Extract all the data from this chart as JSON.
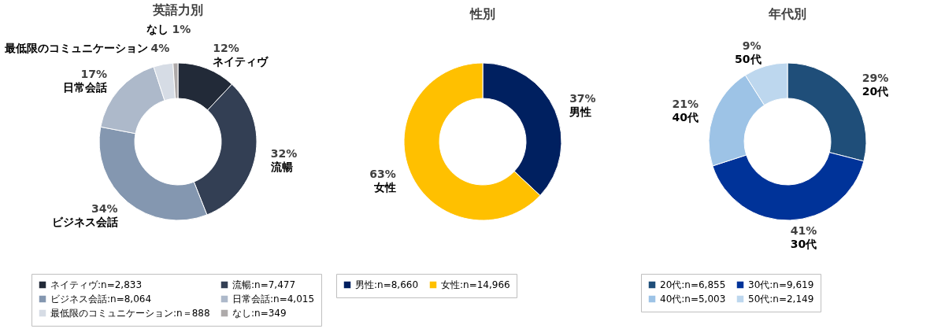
{
  "chart_data": [
    {
      "type": "donut",
      "title": "英語力別",
      "categories": [
        "ネイティヴ:n=2,833",
        "流暢:n=7,477",
        "ビジネス会話:n=8,064",
        "日常会話:n=4,015",
        "最低限のコミュニケーション:n＝888",
        "なし:n=349"
      ],
      "values": [
        12,
        32,
        34,
        17,
        4,
        1
      ],
      "colors": [
        "#222a38",
        "#333f54",
        "#8497b0",
        "#adb9ca",
        "#d6dce5",
        "#aeaaaa"
      ],
      "value_labels": [
        "12%",
        "32%",
        "34%",
        "17%",
        "4%",
        "1%"
      ],
      "annotations": [
        "ネイティヴ",
        "流暢",
        "ビジネス会話",
        "日常会話",
        "最低限のコミュニケーション",
        "なし"
      ],
      "legend": "bottom"
    },
    {
      "type": "donut",
      "title": "性別",
      "categories": [
        "男性:n=8,660",
        "女性:n=14,966"
      ],
      "values": [
        37,
        63
      ],
      "colors": [
        "#002060",
        "#ffc000"
      ],
      "value_labels": [
        "37%",
        "63%"
      ],
      "annotations": [
        "男性",
        "女性"
      ],
      "legend": "bottom"
    },
    {
      "type": "donut",
      "title": "年代別",
      "categories": [
        "20代:n=6,855",
        "30代:n=9,619",
        "40代:n=5,003",
        "50代:n=2,149"
      ],
      "values": [
        29,
        41,
        21,
        9
      ],
      "colors": [
        "#1f4e79",
        "#003399",
        "#9dc3e6",
        "#bdd7ee"
      ],
      "value_labels": [
        "29%",
        "41%",
        "21%",
        "9%"
      ],
      "annotations": [
        "20代",
        "30代",
        "40代",
        "50代"
      ],
      "legend": "bottom"
    }
  ]
}
